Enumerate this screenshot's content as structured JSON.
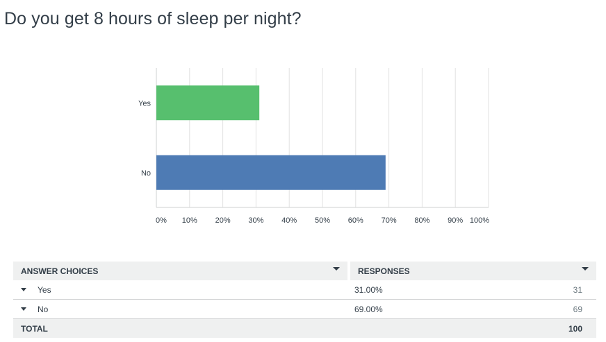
{
  "question": {
    "title": "Do you get 8 hours of sleep per night?"
  },
  "chart_data": {
    "type": "bar",
    "orientation": "horizontal",
    "categories": [
      "Yes",
      "No"
    ],
    "values": [
      31,
      69
    ],
    "xlim": [
      0,
      100
    ],
    "x_ticks": [
      "0%",
      "10%",
      "20%",
      "30%",
      "40%",
      "50%",
      "60%",
      "70%",
      "80%",
      "90%",
      "100%"
    ],
    "bar_colors": [
      "#57bf6e",
      "#4e7bb4"
    ],
    "grid": true
  },
  "table": {
    "headers": {
      "choice": "ANSWER CHOICES",
      "responses": "RESPONSES"
    },
    "rows": [
      {
        "choice": "Yes",
        "percent": "31.00%",
        "count": "31"
      },
      {
        "choice": "No",
        "percent": "69.00%",
        "count": "69"
      }
    ],
    "total": {
      "label": "TOTAL",
      "count": "100"
    }
  },
  "colors": {
    "text": "#333e48",
    "header_bg": "#eff0f0",
    "grid": "#e2e2e2"
  }
}
